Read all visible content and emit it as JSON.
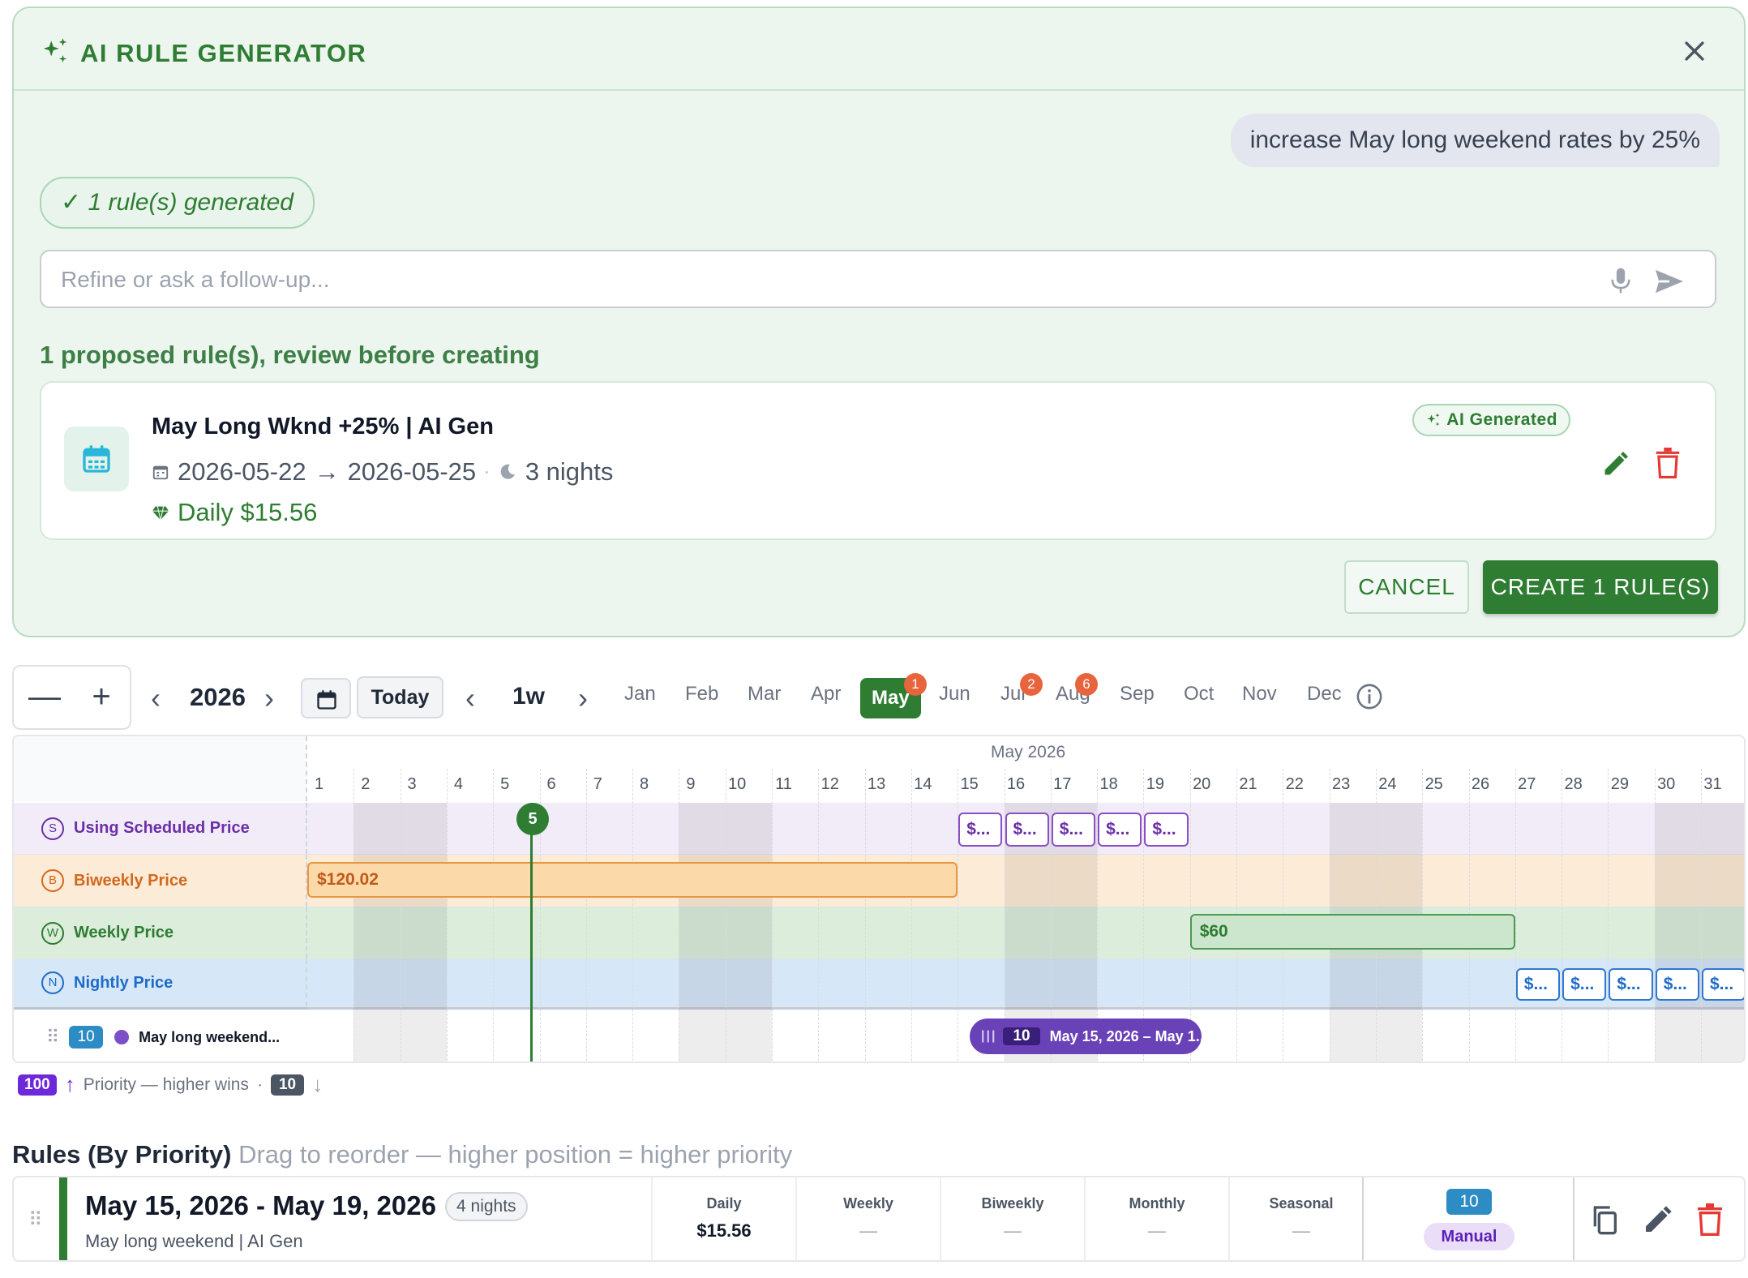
{
  "ai_panel": {
    "title": "AI RULE GENERATOR",
    "user_message": "increase May long weekend rates by 25%",
    "generated_chip": "✓ 1 rule(s) generated",
    "refine_placeholder": "Refine or ask a follow-up...",
    "proposed_label": "1 proposed rule(s), review before creating",
    "proposed_rule": {
      "name": "May Long Wknd +25% | AI Gen",
      "start": "2026-05-22",
      "arrow": "→",
      "end": "2026-05-25",
      "nights": "3 nights",
      "price": "Daily $15.56",
      "badge": "AI Generated"
    },
    "cancel_label": "CANCEL",
    "create_label": "CREATE 1 RULE(S)"
  },
  "toolbar": {
    "zoom_out": "—",
    "zoom_in": "+",
    "prev": "‹",
    "next": "›",
    "year": "2026",
    "today_label": "Today",
    "period": "1w",
    "months": [
      {
        "label": "Jan"
      },
      {
        "label": "Feb"
      },
      {
        "label": "Mar"
      },
      {
        "label": "Apr"
      },
      {
        "label": "May",
        "active": true,
        "badge": "1"
      },
      {
        "label": "Jun"
      },
      {
        "label": "Jul",
        "badge": "2"
      },
      {
        "label": "Aug",
        "badge": "6"
      },
      {
        "label": "Sep"
      },
      {
        "label": "Oct"
      },
      {
        "label": "Nov"
      },
      {
        "label": "Dec"
      }
    ]
  },
  "timeline": {
    "month_label": "May 2026",
    "days": [
      "1",
      "2",
      "3",
      "4",
      "5",
      "6",
      "7",
      "8",
      "9",
      "10",
      "11",
      "12",
      "13",
      "14",
      "15",
      "16",
      "17",
      "18",
      "19",
      "20",
      "21",
      "22",
      "23",
      "24",
      "25",
      "26",
      "27",
      "28",
      "29",
      "30",
      "31"
    ],
    "today": "5",
    "lanes": [
      {
        "letter": "S",
        "label": "Using Scheduled Price",
        "color": "#6b2fa8",
        "bg": "#f1ecf7"
      },
      {
        "letter": "B",
        "label": "Biweekly Price",
        "color": "#d2691e",
        "bg": "#fcebd6"
      },
      {
        "letter": "W",
        "label": "Weekly Price",
        "color": "#2e7d32",
        "bg": "#dceddc"
      },
      {
        "letter": "N",
        "label": "Nightly Price",
        "color": "#1e6bc9",
        "bg": "#d6e7f8"
      }
    ],
    "scheduled_chips": [
      "$...",
      "$...",
      "$...",
      "$...",
      "$..."
    ],
    "biweekly_bar": "$120.02",
    "weekly_bar": "$60",
    "nightly_chips": [
      "$...",
      "$...",
      "$...",
      "$...",
      "$..."
    ],
    "rule_lane": {
      "priority": "10",
      "label": "May long weekend...",
      "bar_grip": "|||",
      "bar_priority": "10",
      "bar_label": "May 15, 2026 – May 1..."
    }
  },
  "legend": {
    "high": "100",
    "text": "Priority — higher wins",
    "dot": "·",
    "low": "10"
  },
  "rules": {
    "title": "Rules (By Priority)",
    "hint": "Drag to reorder — higher position = higher priority",
    "items": [
      {
        "range": "May 15, 2026 - May 19, 2026",
        "nights": "4 nights",
        "subtitle": "May long weekend | AI Gen",
        "prices": [
          {
            "label": "Daily",
            "value": "$15.56"
          },
          {
            "label": "Weekly",
            "value": "—"
          },
          {
            "label": "Biweekly",
            "value": "—"
          },
          {
            "label": "Monthly",
            "value": "—"
          },
          {
            "label": "Seasonal",
            "value": "—"
          }
        ],
        "priority": "10",
        "source": "Manual"
      }
    ]
  },
  "colors": {
    "accent_green": "#2e7d32",
    "rule_purple": "#6a42b8",
    "priority_blue": "#2d8cc4",
    "danger_red": "#e53935"
  }
}
